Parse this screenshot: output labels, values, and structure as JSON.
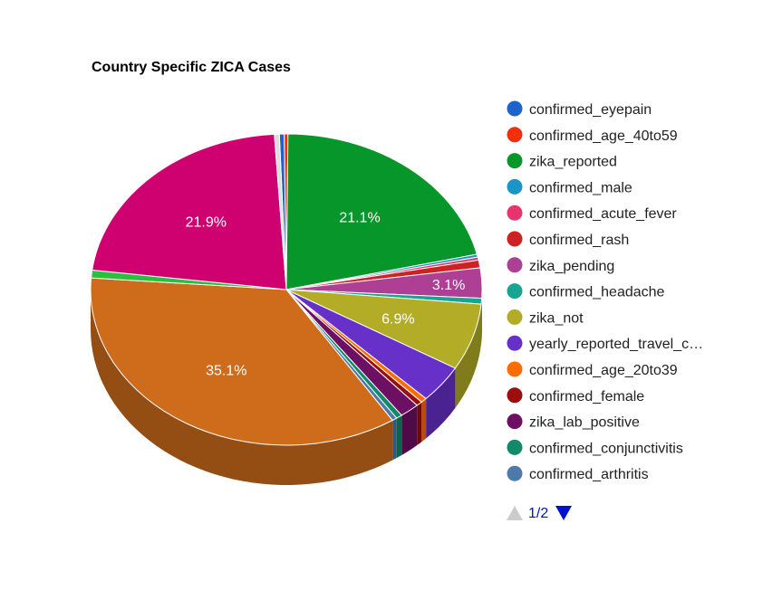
{
  "chart_data": {
    "type": "pie",
    "title": "Country Specific ZICA Cases",
    "slices": [
      {
        "name": "confirmed_eyepain",
        "value": 0.4,
        "color": "#1c64c8",
        "label": ""
      },
      {
        "name": "confirmed_age_40to59",
        "value": 0.3,
        "color": "#f0300c",
        "label": ""
      },
      {
        "name": "zika_reported",
        "value": 21.1,
        "color": "#07962a",
        "label": "21.1%"
      },
      {
        "name": "confirmed_male",
        "value": 0.3,
        "color": "#1b95c6",
        "label": ""
      },
      {
        "name": "confirmed_acute_fever",
        "value": 0.3,
        "color": "#e8336f",
        "label": ""
      },
      {
        "name": "confirmed_rash",
        "value": 0.8,
        "color": "#cc2222",
        "label": ""
      },
      {
        "name": "zika_pending",
        "value": 3.1,
        "color": "#ad3f95",
        "label": "3.1%"
      },
      {
        "name": "confirmed_headache",
        "value": 0.6,
        "color": "#16a591",
        "label": ""
      },
      {
        "name": "zika_not",
        "value": 6.9,
        "color": "#b2ac26",
        "label": "6.9%"
      },
      {
        "name": "yearly_reported_travel_c…",
        "value": 3.9,
        "color": "#6730c9",
        "label": ""
      },
      {
        "name": "confirmed_age_20to39",
        "value": 0.5,
        "color": "#ff6d00",
        "label": ""
      },
      {
        "name": "confirmed_female",
        "value": 0.5,
        "color": "#9b0e0e",
        "label": ""
      },
      {
        "name": "zika_lab_positive",
        "value": 1.6,
        "color": "#6d0f63",
        "label": ""
      },
      {
        "name": "confirmed_conjunctivitis",
        "value": 0.5,
        "color": "#128968",
        "label": ""
      },
      {
        "name": "confirmed_arthritis",
        "value": 0.4,
        "color": "#4e7aa9",
        "label": ""
      },
      {
        "name": "",
        "value": 35.1,
        "color": "#ce6c1c",
        "label": "35.1%"
      },
      {
        "name": "",
        "value": 0.8,
        "color": "#28c03c",
        "label": ""
      },
      {
        "name": "",
        "value": 21.9,
        "color": "#cf0070",
        "label": "21.9%"
      },
      {
        "name": "",
        "value": 0.4,
        "color": "#dddddd",
        "label": ""
      }
    ],
    "legend": {
      "placement": "right",
      "entries": [
        "confirmed_eyepain",
        "confirmed_age_40to59",
        "zika_reported",
        "confirmed_male",
        "confirmed_acute_fever",
        "confirmed_rash",
        "zika_pending",
        "confirmed_headache",
        "zika_not",
        "yearly_reported_travel_c…",
        "confirmed_age_20to39",
        "confirmed_female",
        "zika_lab_positive",
        "confirmed_conjunctivitis",
        "confirmed_arthritis"
      ],
      "page_indicator": "1/2"
    },
    "is_3d": true
  }
}
